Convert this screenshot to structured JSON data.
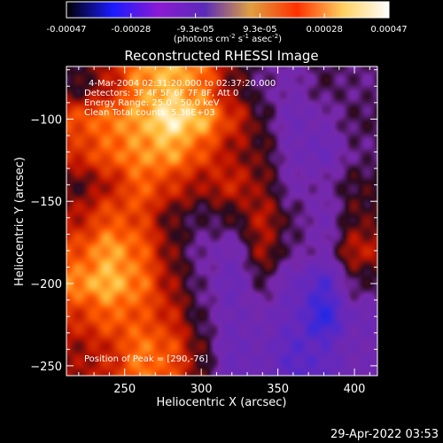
{
  "chart_data": {
    "type": "heatmap",
    "title": "Reconstructed RHESSI Image",
    "xlabel": "Heliocentric X (arcsec)",
    "ylabel": "Heliocentric Y (arcsec)",
    "xlim": [
      212,
      415
    ],
    "ylim": [
      -256,
      -68
    ],
    "xticks": [
      250,
      300,
      350,
      400
    ],
    "yticks": [
      -250,
      -200,
      -150,
      -100
    ],
    "colorbar": {
      "min": -0.00047,
      "max": 0.00047,
      "ticks": [
        "-0.00047",
        "-0.00028",
        "-9.3e-05",
        "9.3e-05",
        "0.00028",
        "0.00047"
      ],
      "unit_parts": [
        "(photons cm",
        "-2",
        " s",
        "-1",
        " asec",
        "-2",
        ")"
      ],
      "colormap": [
        "#000000",
        "#1a1aff",
        "#8a1ad4",
        "#5a2ab8",
        "#e0a040",
        "#ff3000",
        "#ffd060",
        "#ffffff"
      ]
    },
    "annotations": [
      "4-Mar-2004 02:31:20.000 to 02:37:20.000",
      "Detectors: 3F 4F 5F 6F 7F 8F, Att 0",
      "Energy Range: 25.0 - 50.0 keV",
      "Clean     Total counts: 5.36E+03"
    ],
    "peak_label": "Position of Peak = [290,-76]",
    "peak": [
      290,
      -76
    ],
    "intensity_grid": {
      "x": [
        220,
        240,
        260,
        280,
        300,
        320,
        340,
        360,
        380,
        400
      ],
      "y": [
        -80,
        -100,
        -120,
        -140,
        -160,
        -180,
        -200,
        -220,
        -240
      ],
      "values": [
        [
          0.15,
          0.35,
          0.7,
          0.8,
          0.65,
          0.25,
          0.05,
          -0.05,
          0.1,
          0.05
        ],
        [
          0.55,
          0.65,
          0.75,
          0.95,
          0.8,
          0.45,
          0.15,
          -0.15,
          -0.05,
          0.1
        ],
        [
          0.45,
          0.6,
          0.7,
          0.75,
          0.55,
          0.3,
          0.2,
          -0.1,
          -0.2,
          0.05
        ],
        [
          0.2,
          0.35,
          0.6,
          0.45,
          0.3,
          0.4,
          0.25,
          -0.05,
          0.0,
          0.15
        ],
        [
          0.35,
          0.55,
          0.5,
          0.2,
          0.1,
          0.15,
          0.35,
          0.1,
          -0.1,
          0.2
        ],
        [
          0.55,
          0.75,
          0.6,
          0.25,
          0.0,
          -0.1,
          0.3,
          0.05,
          -0.05,
          0.35
        ],
        [
          0.7,
          0.8,
          0.65,
          0.3,
          0.05,
          -0.2,
          0.1,
          -0.2,
          -0.4,
          0.1
        ],
        [
          0.45,
          0.6,
          0.55,
          0.4,
          0.1,
          -0.15,
          -0.1,
          -0.25,
          -0.55,
          -0.15
        ],
        [
          0.3,
          0.4,
          0.65,
          0.55,
          0.2,
          -0.2,
          -0.15,
          -0.35,
          -0.3,
          -0.1
        ]
      ]
    }
  },
  "footer": {
    "timestamp": "29-Apr-2022 03:53"
  }
}
